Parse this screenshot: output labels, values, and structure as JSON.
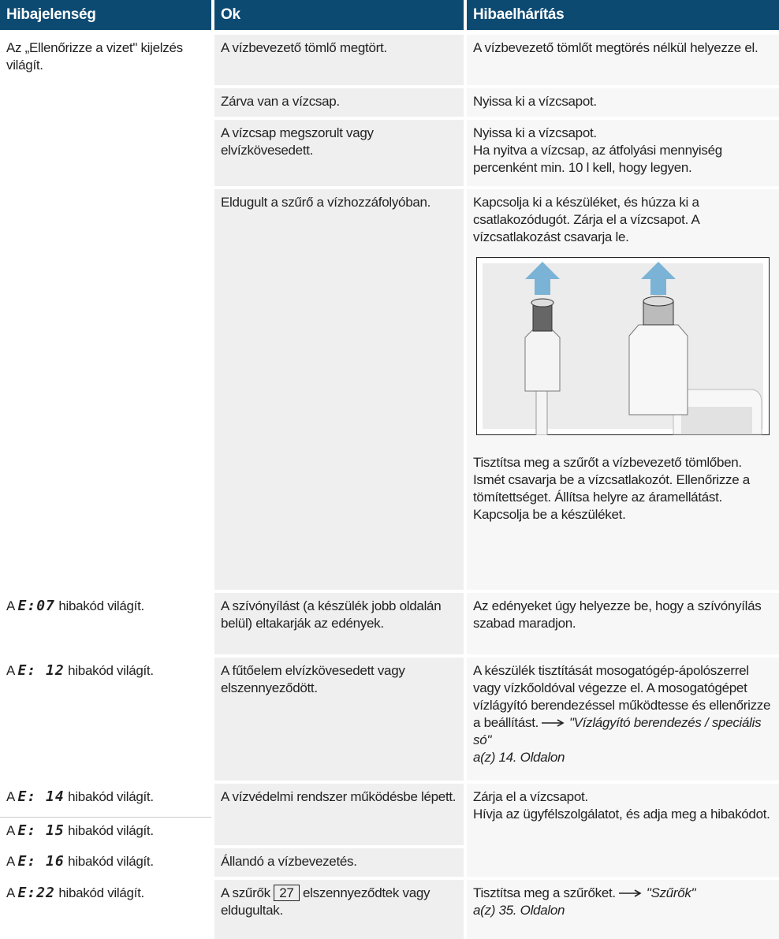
{
  "header": {
    "col1": "Hibajelenség",
    "col2": "Ok",
    "col3": "Hibaelhárítás"
  },
  "rows": [
    {
      "symptom": "Az „Ellenőrizze a vizet\" kijelzés világít.",
      "causes": [
        {
          "cause": "A vízbevezető tömlő megtört.",
          "remedy": [
            "A vízbevezető tömlőt megtörés nélkül helyezze el."
          ]
        },
        {
          "cause": "Zárva van a vízcsap.",
          "remedy": [
            "Nyissa ki a vízcsapot."
          ]
        },
        {
          "cause": "A vízcsap megszorult vagy elvízkövesedett.",
          "remedy": [
            "Nyissa ki a vízcsapot.",
            "Ha nyitva a vízcsap, az átfolyási mennyiség percenként min. 10 l kell, hogy legyen."
          ]
        },
        {
          "cause": "Eldugult a szűrő a vízhozzáfolyóban.",
          "remedy": [
            "Kapcsolja ki a készüléket, és húzza ki a csatlakozódugót. Zárja el a vízcsapot. A vízcsatlakozást csavarja le.",
            "Tisztítsa meg a szűrőt a vízbevezető tömlőben. Ismét csavarja be a vízcsatlakozót. Ellenőrizze a tömítettséget. Állítsa helyre az áramellátást. Kapcsolja be a készüléket."
          ]
        }
      ]
    },
    {
      "symptom": {
        "prefix": "A",
        "code": "E:07",
        "suffix": "hibakód világít."
      },
      "cause": "A szívónyílást (a készülék jobb oldalán belül) eltakarják az edények.",
      "remedy": "Az edényeket úgy helyezze be, hogy a szívónyílás szabad maradjon."
    },
    {
      "symptom": {
        "prefix": "A",
        "code": "E: 12",
        "suffix": "hibakód világít."
      },
      "cause": "A fűtőelem elvízkövesedett vagy elszennyeződött.",
      "remedy": {
        "text": "A készülék tisztítását mosogatógép-ápolószerrel vagy vízkőoldóval végezze el. A mosogatógépet vízlágyító berendezéssel működtesse és ellenőrizze a beállítást.",
        "ref": "\"Vízlágyító berendezés / speciális só\"",
        "page": "a(z) 14. Oldalon"
      }
    },
    {
      "symptoms": [
        {
          "prefix": "A",
          "code": "E: 14",
          "suffix": "hibakód világít."
        },
        {
          "prefix": "A",
          "code": "E: 15",
          "suffix": "hibakód világít."
        },
        {
          "prefix": "A",
          "code": "E: 16",
          "suffix": "hibakód világít."
        }
      ],
      "causes": [
        "A vízvédelmi rendszer működésbe lépett.",
        "Állandó a vízbevezetés."
      ],
      "remedy": [
        "Zárja el a vízcsapot.",
        "Hívja az ügyfélszolgálatot, és adja meg a hibakódot."
      ]
    },
    {
      "symptom": {
        "prefix": "A",
        "code": "E:22",
        "suffix": "hibakód világít."
      },
      "cause": {
        "before": "A szűrők",
        "item": "27",
        "after": "elszennyeződtek vagy eldugultak."
      },
      "remedy": {
        "text": "Tisztítsa meg a szűrőket.",
        "ref": "\"Szűrők\"",
        "page": "a(z) 35. Oldalon"
      }
    }
  ]
}
